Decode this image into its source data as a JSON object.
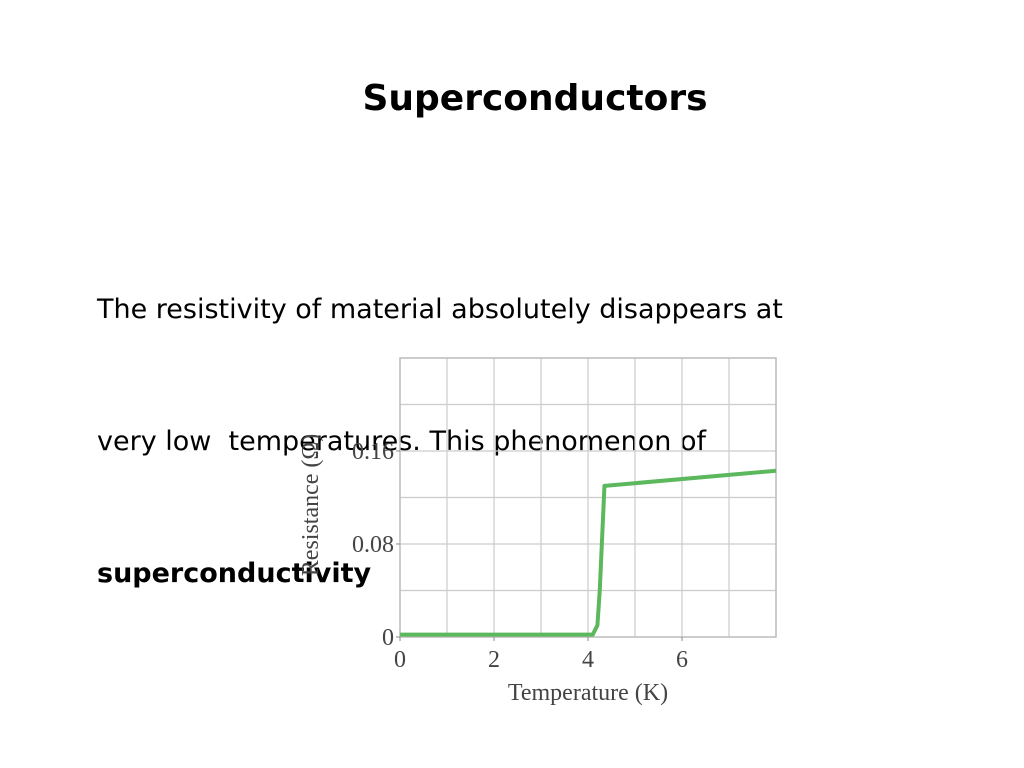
{
  "slide": {
    "title": "Superconductors",
    "body": [
      "The resistivity of material absolutely disappears at",
      "very low  temperatures. This phenomenon of",
      "superconductivity"
    ]
  },
  "chart_data": {
    "type": "line",
    "x_label": "Temperature (K)",
    "y_label": "Resistance (Ω)",
    "xlim": [
      0,
      8
    ],
    "ylim": [
      0,
      0.24
    ],
    "xticks": [
      0,
      2,
      4,
      6
    ],
    "yticks": [
      0,
      0.08,
      0.16
    ],
    "xgrid": [
      1,
      2,
      3,
      4,
      5,
      6,
      7
    ],
    "ygrid": [
      0.04,
      0.08,
      0.12,
      0.16,
      0.2
    ],
    "grid": true,
    "series": [
      {
        "color": "#5cb85c",
        "x": [
          0,
          4.1,
          4.2,
          4.25,
          4.35,
          8
        ],
        "values": [
          0.002,
          0.002,
          0.01,
          0.04,
          0.13,
          0.143
        ]
      }
    ]
  }
}
